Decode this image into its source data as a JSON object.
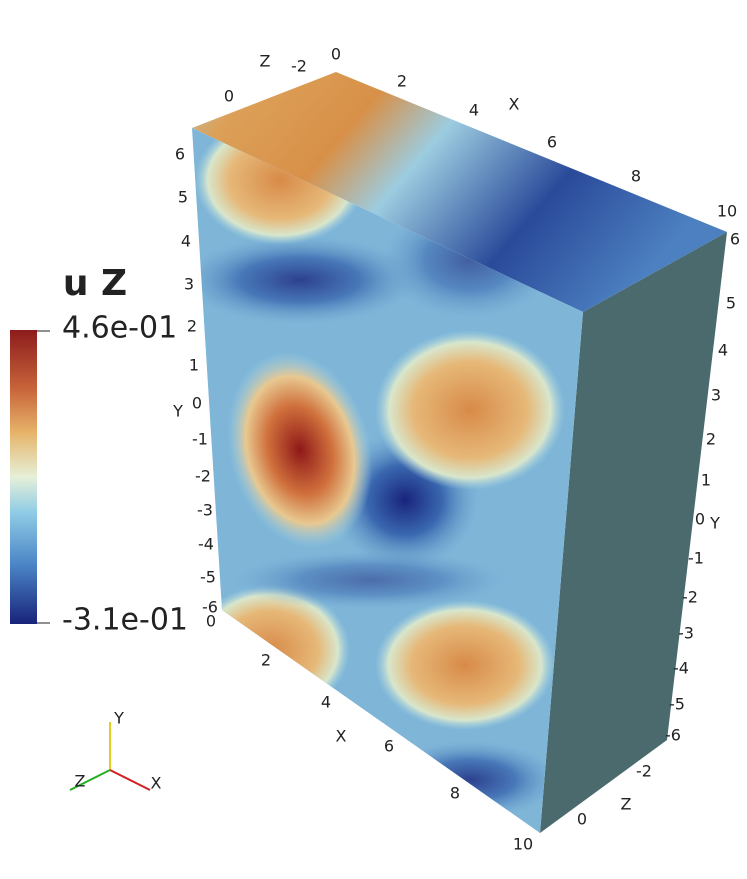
{
  "scalar_bar": {
    "title": "u Z",
    "max_label": "4.6e-01",
    "min_label": "-3.1e-01"
  },
  "axes": {
    "top_x": {
      "title": "X",
      "labels": [
        0,
        2,
        4,
        6,
        8,
        10
      ]
    },
    "top_z": {
      "title": "Z",
      "labels": [
        0,
        -2
      ]
    },
    "left_y": {
      "title": "Y",
      "labels": [
        6,
        5,
        4,
        3,
        2,
        1,
        0,
        -1,
        -2,
        -3,
        -4,
        -5,
        -6
      ]
    },
    "bottom_x": {
      "title": "X",
      "labels": [
        0,
        2,
        4,
        6,
        8,
        10
      ]
    },
    "bottom_z": {
      "title": "Z",
      "labels": [
        0,
        -2
      ]
    },
    "right_y": {
      "title": "Y",
      "labels": [
        6,
        5,
        4,
        3,
        2,
        1,
        0,
        -1,
        -2,
        -3,
        -4,
        -5,
        -6
      ]
    }
  },
  "triad": {
    "x": "X",
    "y": "Y",
    "z": "Z"
  }
}
